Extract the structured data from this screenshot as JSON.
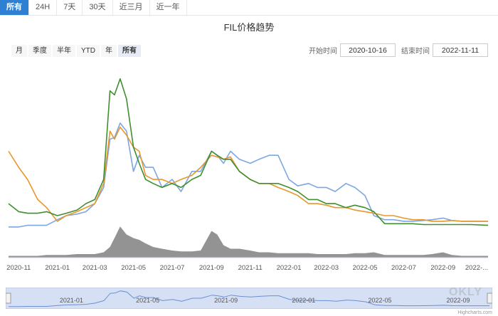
{
  "tabs": [
    {
      "label": "所有",
      "active": true
    },
    {
      "label": "24H",
      "active": false
    },
    {
      "label": "7天",
      "active": false
    },
    {
      "label": "30天",
      "active": false
    },
    {
      "label": "近三月",
      "active": false
    },
    {
      "label": "近一年",
      "active": false
    }
  ],
  "title": "FIL价格趋势",
  "range_buttons": [
    {
      "label": "月",
      "active": false
    },
    {
      "label": "季度",
      "active": false
    },
    {
      "label": "半年",
      "active": false
    },
    {
      "label": "YTD",
      "active": false
    },
    {
      "label": "年",
      "active": false
    },
    {
      "label": "所有",
      "active": true
    }
  ],
  "date_range": {
    "start_label": "开始时间",
    "start_value": "2020-10-16",
    "end_label": "结束时间",
    "end_value": "2022-11-11"
  },
  "navigator_labels": [
    "2021-01",
    "2021-05",
    "2021-09",
    "2022-01",
    "2022-05",
    "2022-09"
  ],
  "credits": "Highcharts.com",
  "watermark": "OKLY",
  "colors": {
    "blue": "#7ea6e0",
    "orange": "#e8962e",
    "green": "#3f8f2f",
    "volume": "#808080",
    "tab_active": "#2f7fd3",
    "navigator_fill": "#d6e0f5"
  },
  "chart_data": {
    "type": "line",
    "x": [
      "2020-10-16",
      "2020-11-01",
      "2020-11-15",
      "2020-12-01",
      "2020-12-15",
      "2021-01-01",
      "2021-01-15",
      "2021-02-01",
      "2021-02-15",
      "2021-03-01",
      "2021-03-15",
      "2021-03-25",
      "2021-04-01",
      "2021-04-10",
      "2021-04-20",
      "2021-05-01",
      "2021-05-10",
      "2021-05-20",
      "2021-06-01",
      "2021-06-15",
      "2021-07-01",
      "2021-07-15",
      "2021-08-01",
      "2021-08-15",
      "2021-09-01",
      "2021-09-10",
      "2021-09-20",
      "2021-10-01",
      "2021-10-15",
      "2021-11-01",
      "2021-11-15",
      "2021-12-01",
      "2021-12-15",
      "2022-01-01",
      "2022-01-15",
      "2022-02-01",
      "2022-02-15",
      "2022-03-01",
      "2022-03-15",
      "2022-04-01",
      "2022-04-15",
      "2022-05-01",
      "2022-05-15",
      "2022-06-01",
      "2022-06-15",
      "2022-07-01",
      "2022-07-15",
      "2022-08-01",
      "2022-08-15",
      "2022-09-01",
      "2022-09-15",
      "2022-10-01",
      "2022-10-15",
      "2022-11-11"
    ],
    "series": [
      {
        "color": "#7ea6e0",
        "values": [
          1,
          1,
          3,
          3,
          3,
          10,
          15,
          17,
          20,
          30,
          50,
          110,
          112,
          130,
          120,
          70,
          90,
          75,
          75,
          50,
          60,
          45,
          70,
          70,
          95,
          90,
          80,
          95,
          85,
          80,
          85,
          90,
          90,
          60,
          52,
          55,
          50,
          50,
          45,
          55,
          50,
          40,
          15,
          10,
          10,
          8,
          8,
          9,
          10,
          12,
          9,
          8,
          8,
          8
        ]
      },
      {
        "color": "#e8962e",
        "values": [
          95,
          75,
          60,
          35,
          25,
          8,
          15,
          20,
          25,
          30,
          55,
          120,
          110,
          125,
          115,
          100,
          95,
          65,
          60,
          60,
          55,
          60,
          65,
          75,
          90,
          88,
          85,
          88,
          70,
          60,
          55,
          55,
          50,
          45,
          40,
          30,
          30,
          28,
          25,
          25,
          22,
          20,
          18,
          15,
          15,
          12,
          10,
          10,
          8,
          8,
          9,
          8,
          8,
          8
        ]
      },
      {
        "color": "#3f8f2f",
        "values": [
          30,
          20,
          18,
          18,
          20,
          15,
          18,
          22,
          30,
          35,
          60,
          170,
          165,
          185,
          160,
          100,
          80,
          60,
          55,
          50,
          55,
          50,
          60,
          65,
          95,
          90,
          85,
          85,
          70,
          60,
          55,
          55,
          55,
          50,
          45,
          35,
          35,
          30,
          30,
          25,
          28,
          25,
          20,
          5,
          5,
          5,
          5,
          4,
          4,
          4,
          4,
          4,
          4,
          3
        ]
      }
    ],
    "volume": [
      2,
      2,
      2,
      2,
      3,
      3,
      3,
      4,
      4,
      4,
      6,
      12,
      22,
      35,
      26,
      22,
      20,
      16,
      12,
      10,
      8,
      7,
      7,
      8,
      30,
      26,
      14,
      10,
      10,
      8,
      6,
      6,
      5,
      5,
      5,
      5,
      4,
      4,
      4,
      4,
      5,
      5,
      6,
      3,
      3,
      3,
      3,
      3,
      4,
      6,
      3,
      2,
      2,
      2
    ],
    "x_tick_labels": [
      "2020-11",
      "2021-01",
      "2021-03",
      "2021-05",
      "2021-07",
      "2021-09",
      "2021-11",
      "2022-01",
      "2022-03",
      "2022-05",
      "2022-07",
      "2022-09",
      "2022-..."
    ],
    "grid": false,
    "legend": false,
    "title": "FIL价格趋势",
    "xlabel": "",
    "ylabel": ""
  }
}
